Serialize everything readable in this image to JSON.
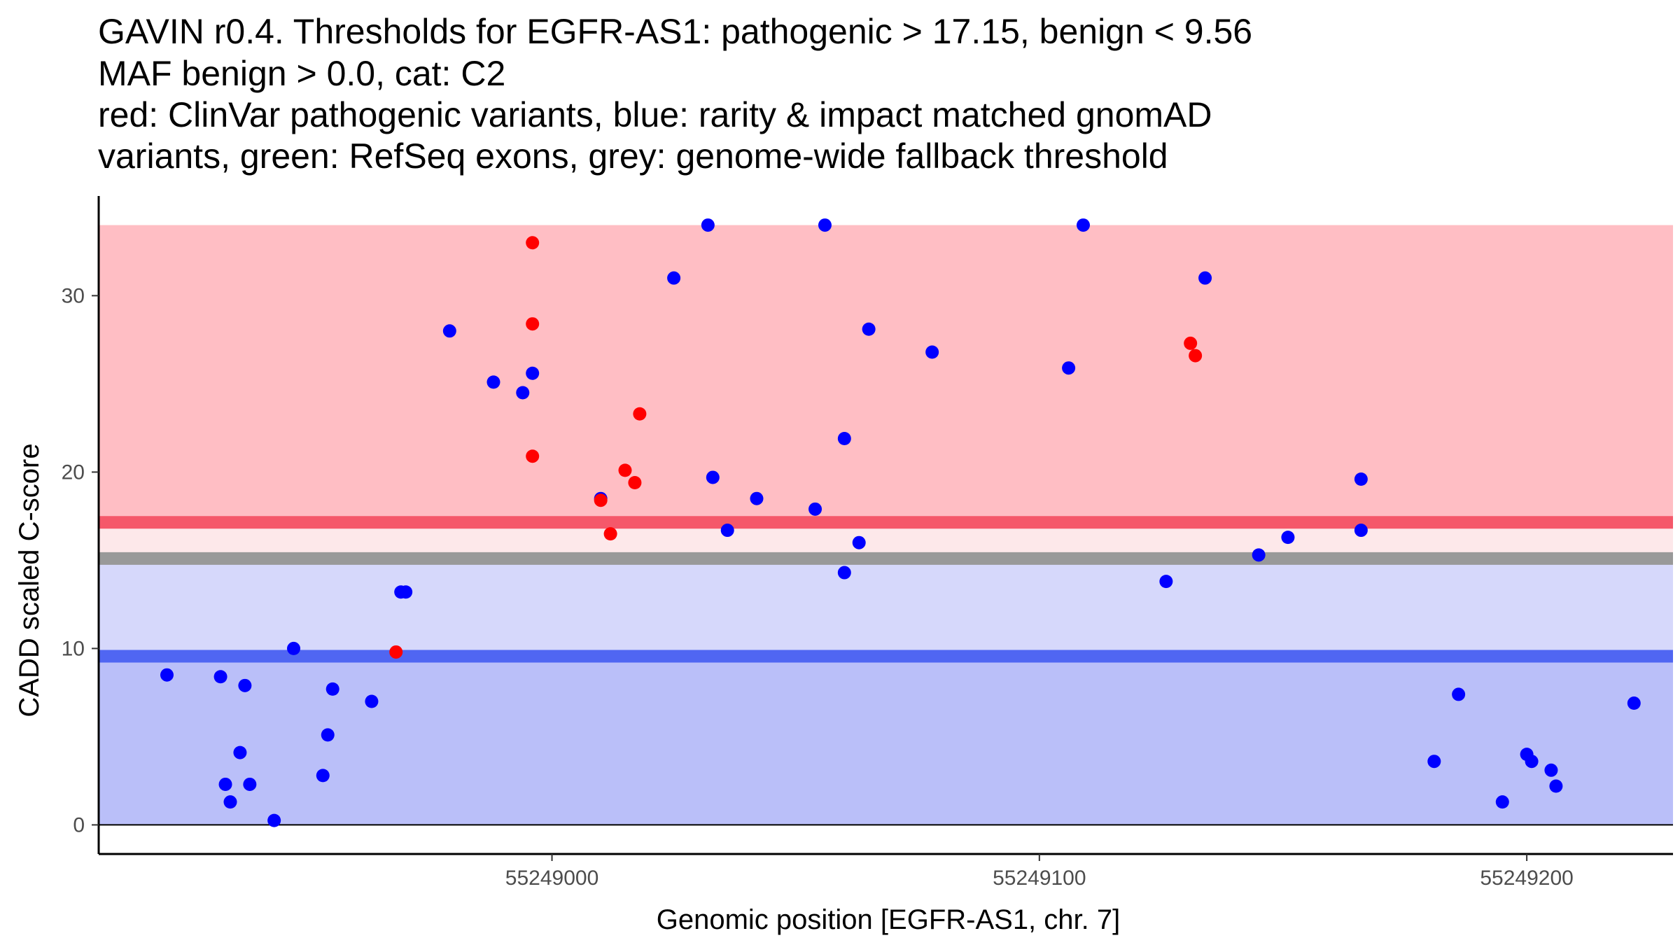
{
  "chart_data": {
    "type": "scatter",
    "title_lines": [
      "GAVIN r0.4. Thresholds for EGFR-AS1: pathogenic > 17.15, benign < 9.56",
      "MAF benign > 0.0, cat: C2",
      "red: ClinVar pathogenic variants, blue: rarity & impact matched gnomAD",
      "variants, green: RefSeq exons, grey: genome-wide fallback threshold"
    ],
    "xlabel": "Genomic position [EGFR-AS1, chr. 7]",
    "ylabel": "CADD scaled C-score",
    "xlim": [
      55248907,
      55249230
    ],
    "ylim": [
      -1.65,
      35.65
    ],
    "x_ticks": [
      {
        "value": 55249000,
        "label": "55249000"
      },
      {
        "value": 55249100,
        "label": "55249100"
      },
      {
        "value": 55249200,
        "label": "55249200"
      }
    ],
    "y_ticks": [
      {
        "value": 0,
        "label": "0"
      },
      {
        "value": 10,
        "label": "10"
      },
      {
        "value": 20,
        "label": "20"
      },
      {
        "value": 30,
        "label": "30"
      }
    ],
    "bands": [
      {
        "name": "pathogenic-region",
        "y0": 17.15,
        "y1": 34,
        "color": "#ffbec4"
      },
      {
        "name": "gap-region",
        "y0": 15.1,
        "y1": 17.15,
        "color": "#fde8ea"
      },
      {
        "name": "fallback-benign-region",
        "y0": 9.56,
        "y1": 15.1,
        "color": "#d6d8fb"
      },
      {
        "name": "benign-region",
        "y0": 0,
        "y1": 9.56,
        "color": "#babff9"
      }
    ],
    "threshold_lines": [
      {
        "name": "pathogenic-threshold",
        "value": 17.15,
        "color": "#f5586a"
      },
      {
        "name": "fallback-threshold",
        "value": 15.1,
        "color": "#999999"
      },
      {
        "name": "benign-threshold",
        "value": 9.56,
        "color": "#5066f2"
      }
    ],
    "series": [
      {
        "name": "gnomAD",
        "color": "#0000ff",
        "points": [
          [
            55248921,
            8.5
          ],
          [
            55248932,
            8.4
          ],
          [
            55248937,
            7.9
          ],
          [
            55248936,
            4.1
          ],
          [
            55248933,
            2.3
          ],
          [
            55248934,
            1.3
          ],
          [
            55248938,
            2.3
          ],
          [
            55248943,
            0.25
          ],
          [
            55248947,
            10.0
          ],
          [
            55248953,
            2.8
          ],
          [
            55248954,
            5.1
          ],
          [
            55248955,
            7.7
          ],
          [
            55248963,
            7.0
          ],
          [
            55248969,
            13.2
          ],
          [
            55248970,
            13.2
          ],
          [
            55248979,
            28.0
          ],
          [
            55248988,
            25.1
          ],
          [
            55248994,
            24.5
          ],
          [
            55248996,
            25.6
          ],
          [
            55249010,
            18.5
          ],
          [
            55249025,
            31.0
          ],
          [
            55249032,
            34.0
          ],
          [
            55249033,
            19.7
          ],
          [
            55249036,
            16.7
          ],
          [
            55249042,
            18.5
          ],
          [
            55249054,
            17.9
          ],
          [
            55249056,
            34.0
          ],
          [
            55249060,
            14.3
          ],
          [
            55249060,
            21.9
          ],
          [
            55249063,
            16.0
          ],
          [
            55249065,
            28.1
          ],
          [
            55249078,
            26.8
          ],
          [
            55249106,
            25.9
          ],
          [
            55249109,
            34.0
          ],
          [
            55249126,
            13.8
          ],
          [
            55249134,
            31.0
          ],
          [
            55249145,
            15.3
          ],
          [
            55249151,
            16.3
          ],
          [
            55249166,
            19.6
          ],
          [
            55249166,
            16.7
          ],
          [
            55249181,
            3.6
          ],
          [
            55249186,
            7.4
          ],
          [
            55249195,
            1.3
          ],
          [
            55249200,
            4.0
          ],
          [
            55249201,
            3.6
          ],
          [
            55249205,
            3.1
          ],
          [
            55249206,
            2.2
          ],
          [
            55249222,
            6.9
          ]
        ]
      },
      {
        "name": "ClinVar pathogenic",
        "color": "#ff0000",
        "points": [
          [
            55248968,
            9.8
          ],
          [
            55248996,
            33.0
          ],
          [
            55248996,
            28.4
          ],
          [
            55248996,
            20.9
          ],
          [
            55249010,
            18.4
          ],
          [
            55249012,
            16.5
          ],
          [
            55249015,
            20.1
          ],
          [
            55249017,
            19.4
          ],
          [
            55249018,
            23.3
          ],
          [
            55249131,
            27.3
          ],
          [
            55249132,
            26.6
          ]
        ]
      }
    ]
  }
}
